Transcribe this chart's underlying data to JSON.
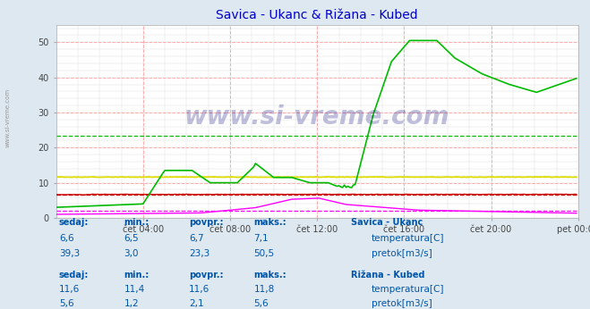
{
  "title": "Savica - Ukanc & Rižana - Kubed",
  "title_color": "#0000cc",
  "bg_color": "#dde8f0",
  "plot_bg_color": "#ffffff",
  "grid_color_major": "#ffaaaa",
  "grid_color_minor": "#dddddd",
  "xlim": [
    0,
    288
  ],
  "ylim": [
    0,
    55
  ],
  "yticks": [
    0,
    10,
    20,
    30,
    40,
    50
  ],
  "xtick_labels": [
    "čet 04:00",
    "čet 08:00",
    "čet 12:00",
    "čet 16:00",
    "čet 20:00",
    "pet 00:00"
  ],
  "xtick_positions": [
    48,
    96,
    144,
    192,
    240,
    288
  ],
  "watermark": "www.si-vreme.com",
  "watermark_color": "#000077",
  "watermark_alpha": 0.25,
  "savica_temp_color": "#cc0000",
  "savica_flow_color": "#00bb00",
  "rizana_temp_color": "#dddd00",
  "rizana_flow_color": "#ff00ff",
  "avg_savica_temp": 6.7,
  "avg_savica_flow": 23.3,
  "avg_rizana_temp": 11.6,
  "avg_rizana_flow": 2.1,
  "side_label": "www.si-vreme.com",
  "table_header_color": "#0055aa",
  "table_value_color": "#0055aa",
  "legend_info": {
    "savica_label": "Savica - Ukanc",
    "rizana_label": "Rižana - Kubed",
    "temp_label": "temperatura[C]",
    "flow_label": "pretok[m3/s]",
    "savica_sedaj_temp": "6,6",
    "savica_min_temp": "6,5",
    "savica_povpr_temp": "6,7",
    "savica_maks_temp": "7,1",
    "savica_sedaj_flow": "39,3",
    "savica_min_flow": "3,0",
    "savica_povpr_flow": "23,3",
    "savica_maks_flow": "50,5",
    "rizana_sedaj_temp": "11,6",
    "rizana_min_temp": "11,4",
    "rizana_povpr_temp": "11,6",
    "rizana_maks_temp": "11,8",
    "rizana_sedaj_flow": "5,6",
    "rizana_min_flow": "1,2",
    "rizana_povpr_flow": "2,1",
    "rizana_maks_flow": "5,6"
  }
}
